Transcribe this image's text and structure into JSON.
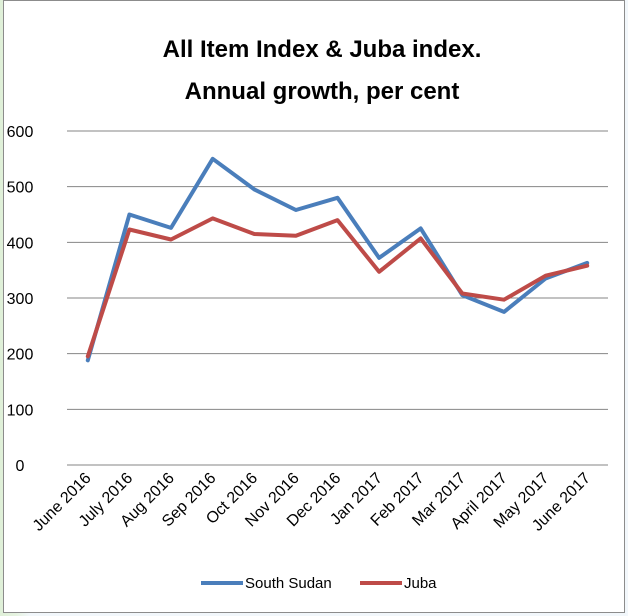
{
  "chart_data": {
    "type": "line",
    "title_lines": [
      "All Item Index & Juba index.",
      "Annual growth, per cent"
    ],
    "categories": [
      "June 2016",
      "July 2016",
      "Aug 2016",
      "Sep 2016",
      "Oct 2016",
      "Nov 2016",
      "Dec 2016",
      "Jan 2017",
      "Feb 2017",
      "Mar 2017",
      "April 2017",
      "May 2017",
      "June 2017"
    ],
    "series": [
      {
        "name": "South Sudan",
        "color": "#4a7ebb",
        "values": [
          188,
          450,
          426,
          550,
          495,
          458,
          480,
          372,
          425,
          305,
          275,
          335,
          363
        ]
      },
      {
        "name": "Juba",
        "color": "#be4b48",
        "values": [
          195,
          423,
          405,
          443,
          415,
          412,
          440,
          347,
          407,
          308,
          297,
          340,
          358
        ]
      }
    ],
    "ylim": [
      0,
      600
    ],
    "yticks": [
      "0",
      "100",
      "200",
      "300",
      "400",
      "500",
      "600"
    ],
    "grid": true,
    "legend_position": "bottom"
  }
}
